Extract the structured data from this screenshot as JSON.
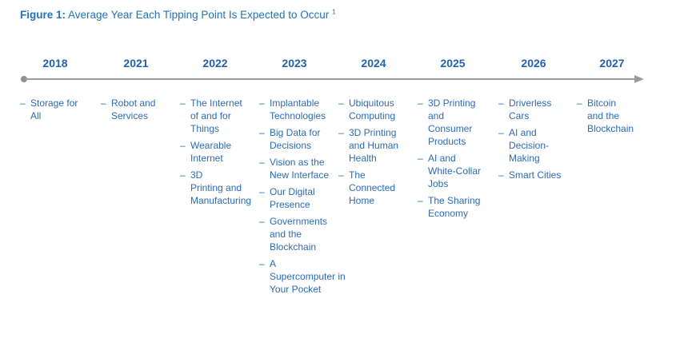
{
  "title": {
    "prefix": "Figure 1:",
    "text": " Average Year Each Tipping Point Is Expected to Occur ",
    "footnote_marker": "1"
  },
  "colors": {
    "title_blue": "#2272bc",
    "year_blue": "#2162ae",
    "item_blue": "#2b6ab6",
    "timeline_gray": "#9b9b9e"
  },
  "timeline": {
    "bullet": "–",
    "columns": [
      {
        "year": "2018",
        "items": [
          "Storage for\nAll"
        ]
      },
      {
        "year": "2021",
        "items": [
          "Robot and\nServices"
        ]
      },
      {
        "year": "2022",
        "items": [
          "The Internet\nof and for\nThings",
          "Wearable\nInternet",
          "3D\nPrinting and\nManufacturing"
        ]
      },
      {
        "year": "2023",
        "items": [
          "Implantable\nTechnologies",
          "Big Data for\nDecisions",
          "Vision as the\nNew Interface",
          "Our Digital\nPresence",
          "Governments\nand the\nBlockchain",
          "A\nSupercomputer in\nYour Pocket"
        ]
      },
      {
        "year": "2024",
        "items": [
          "Ubiquitous\nComputing",
          "3D Printing\nand Human\nHealth",
          "The\nConnected\nHome"
        ]
      },
      {
        "year": "2025",
        "items": [
          "3D Printing\nand\nConsumer\nProducts",
          "AI and\nWhite-Collar\nJobs",
          "The Sharing\nEconomy"
        ]
      },
      {
        "year": "2026",
        "items": [
          "Driverless\nCars",
          "AI and\nDecision-\nMaking",
          "Smart Cities"
        ]
      },
      {
        "year": "2027",
        "items": [
          "Bitcoin\nand the\nBlockchain"
        ]
      }
    ]
  }
}
